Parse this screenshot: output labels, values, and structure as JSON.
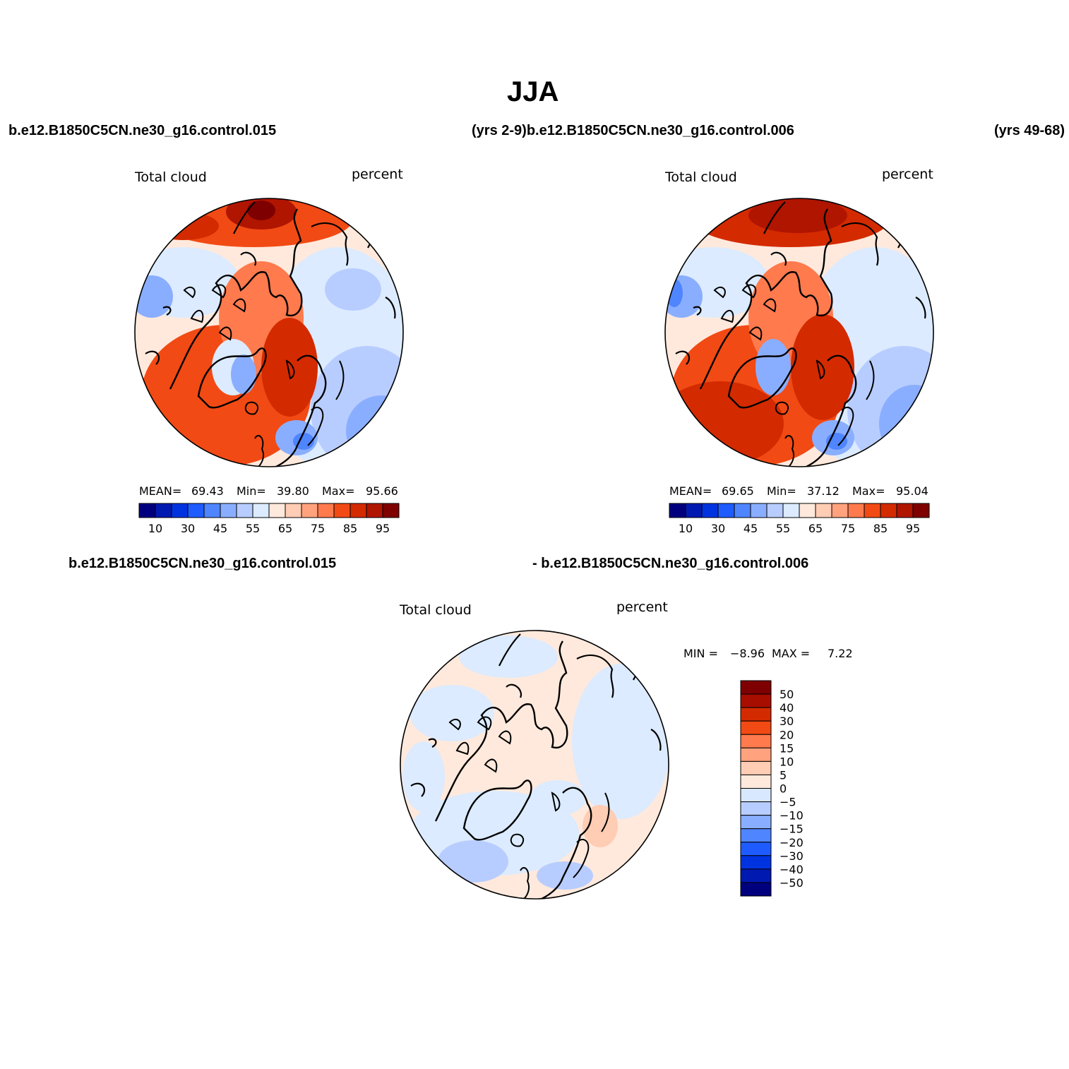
{
  "title": "JJA",
  "case_labels": {
    "top_left": "b.e12.B1850C5CN.ne30_g16.control.015",
    "top_mid": "(yrs 2-9)b.e12.B1850C5CN.ne30_g16.control.006",
    "top_right": "(yrs 49-68)",
    "bottom_left": "b.e12.B1850C5CN.ne30_g16.control.015",
    "bottom_right": "- b.e12.B1850C5CN.ne30_g16.control.006"
  },
  "panels": [
    {
      "id": "case1",
      "variable": "Total cloud",
      "units": "percent",
      "stats": {
        "mean_label": "MEAN=",
        "mean": "69.43",
        "min_label": "Min=",
        "min": "39.80",
        "max_label": "Max=",
        "max": "95.66"
      }
    },
    {
      "id": "case2",
      "variable": "Total cloud",
      "units": "percent",
      "stats": {
        "mean_label": "MEAN=",
        "mean": "69.65",
        "min_label": "Min=",
        "min": "37.12",
        "max_label": "Max=",
        "max": "95.04"
      }
    },
    {
      "id": "diff",
      "variable": "Total cloud",
      "units": "percent",
      "stats": {
        "min_label": "MIN =",
        "min": "−8.96",
        "max_label": "MAX =",
        "max": "7.22"
      }
    }
  ],
  "colorbar_horizontal": {
    "colors": [
      "#00007f",
      "#0019b0",
      "#0033e0",
      "#1f5cff",
      "#4f85ff",
      "#8aaeff",
      "#b8cdff",
      "#dcebff",
      "#ffe9dc",
      "#ffccb4",
      "#ffa27d",
      "#ff7a4d",
      "#f24a14",
      "#d42a00",
      "#b01500",
      "#7f0000"
    ],
    "tick_labels": [
      "10",
      "30",
      "45",
      "55",
      "65",
      "75",
      "85",
      "95"
    ]
  },
  "colorbar_vertical": {
    "colors": [
      "#7f0000",
      "#a80e00",
      "#d42a00",
      "#f24a14",
      "#ff7a4d",
      "#ffa27d",
      "#ffccb4",
      "#ffe9dc",
      "#d8e9ff",
      "#b8cdff",
      "#8aaeff",
      "#4f85ff",
      "#1f5cff",
      "#0033e0",
      "#0019b0",
      "#00007f"
    ],
    "tick_labels": [
      "50",
      "40",
      "30",
      "20",
      "15",
      "10",
      "5",
      "0",
      "−5",
      "−10",
      "−15",
      "−20",
      "−30",
      "−40",
      "−50"
    ]
  }
}
